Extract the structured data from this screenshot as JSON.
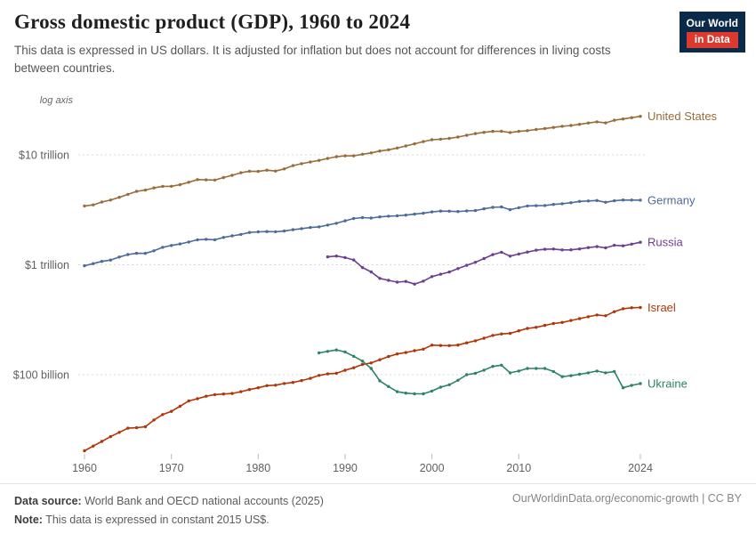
{
  "header": {
    "title": "Gross domestic product (GDP), 1960 to 2024",
    "subtitle": "This data is expressed in US dollars. It is adjusted for inflation but does not account for differences in living costs between countries.",
    "logo": {
      "line1": "Our World",
      "line2": "in Data",
      "bg_color": "#0b2948",
      "accent_color": "#dc3a2f"
    }
  },
  "chart_data": {
    "type": "line",
    "title": "Gross domestic product (GDP), 1960 to 2024",
    "axis_note": "log axis",
    "y_scale": "log",
    "unit": "constant 2015 US$ (billions)",
    "x_range": [
      1960,
      2024
    ],
    "x_ticks": [
      1960,
      1970,
      1980,
      1990,
      2000,
      2010,
      2024
    ],
    "y_ticks": [
      {
        "label": "$10 trillion",
        "value_billion": 10000
      },
      {
        "label": "$1 trillion",
        "value_billion": 1000
      },
      {
        "label": "$100 billion",
        "value_billion": 100
      }
    ],
    "legend_position": "end-of-line labels",
    "grid": true,
    "series": [
      {
        "name": "United States",
        "color": "#996D39",
        "start_year": 1960,
        "values_billion": [
          3430,
          3510,
          3720,
          3880,
          4110,
          4370,
          4660,
          4780,
          5010,
          5170,
          5180,
          5350,
          5630,
          5950,
          5920,
          5900,
          6220,
          6510,
          6870,
          7090,
          7070,
          7250,
          7120,
          7450,
          7980,
          8320,
          8610,
          8910,
          9280,
          9620,
          9800,
          9790,
          10130,
          10410,
          10830,
          11120,
          11540,
          12060,
          12600,
          13200,
          13740,
          13880,
          14120,
          14520,
          15080,
          15600,
          16040,
          16360,
          16380,
          15960,
          16370,
          16620,
          17000,
          17360,
          17760,
          18210,
          18510,
          18940,
          19500,
          19960,
          19530,
          20660,
          21180,
          21790,
          22400
        ]
      },
      {
        "name": "Germany",
        "color": "#4C6A9C",
        "start_year": 1960,
        "values_billion": [
          980,
          1025,
          1073,
          1103,
          1176,
          1238,
          1273,
          1270,
          1340,
          1440,
          1500,
          1547,
          1613,
          1690,
          1705,
          1690,
          1774,
          1834,
          1889,
          1967,
          1994,
          2005,
          1997,
          2028,
          2085,
          2133,
          2183,
          2213,
          2295,
          2385,
          2510,
          2637,
          2688,
          2661,
          2727,
          2768,
          2790,
          2830,
          2887,
          2943,
          3028,
          3080,
          3074,
          3052,
          3088,
          3110,
          3230,
          3327,
          3359,
          3170,
          3302,
          3432,
          3446,
          3461,
          3537,
          3590,
          3670,
          3770,
          3808,
          3845,
          3700,
          3820,
          3889,
          3878,
          3870
        ]
      },
      {
        "name": "Russia",
        "color": "#6D3E91",
        "start_year": 1988,
        "values_billion": [
          1180,
          1200,
          1164,
          1105,
          944,
          862,
          752,
          721,
          695,
          705,
          667,
          710,
          781,
          821,
          860,
          923,
          989,
          1053,
          1139,
          1236,
          1301,
          1199,
          1253,
          1306,
          1358,
          1382,
          1392,
          1365,
          1368,
          1393,
          1432,
          1463,
          1424,
          1505,
          1487,
          1541,
          1604
        ]
      },
      {
        "name": "Israel",
        "color": "#B13507",
        "start_year": 1960,
        "values_billion": [
          20.3,
          22.4,
          24.7,
          27.3,
          29.9,
          32.6,
          32.9,
          33.6,
          38.7,
          43.4,
          46.4,
          51.6,
          57.7,
          60.5,
          63.7,
          65.9,
          66.7,
          67.5,
          70.0,
          73.2,
          76.0,
          79.5,
          80.3,
          83.1,
          85.1,
          88.4,
          92.6,
          98.5,
          101.6,
          103.0,
          109.8,
          115.6,
          123.8,
          128.0,
          136.8,
          146.2,
          154.4,
          159.2,
          165.4,
          170.8,
          185.6,
          184.4,
          183.9,
          186.0,
          195.1,
          203.3,
          214.6,
          227.7,
          234.7,
          237.6,
          250.9,
          263.8,
          269.8,
          281.0,
          292.0,
          298.9,
          311.0,
          323.6,
          336.9,
          349.3,
          343.4,
          374.1,
          398.3,
          406.3,
          409.0
        ]
      },
      {
        "name": "Ukraine",
        "color": "#2C8465",
        "start_year": 1987,
        "values_billion": [
          158,
          163,
          168,
          161,
          147,
          133,
          114,
          88,
          78,
          70,
          68,
          67,
          67,
          71,
          77,
          81,
          89,
          100,
          103,
          110,
          119,
          122,
          104,
          108,
          114,
          114,
          114,
          107,
          96,
          98,
          101,
          104,
          108,
          104,
          107,
          76,
          80,
          83
        ]
      }
    ]
  },
  "footer": {
    "data_source_label": "Data source:",
    "data_source_text": " World Bank and OECD national accounts (2025)",
    "note_label": "Note:",
    "note_text": " This data is expressed in constant 2015 US$.",
    "link_text": "OurWorldinData.org/economic-growth | CC BY"
  }
}
